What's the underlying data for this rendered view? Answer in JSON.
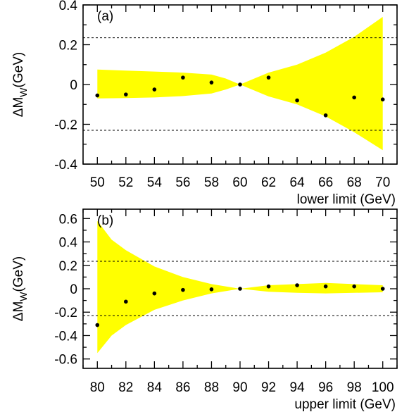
{
  "chart_data": [
    {
      "type": "scatter",
      "panel_label": "(a)",
      "ylabel_main": "ΔM",
      "ylabel_sub": "W",
      "ylabel_unit": "(GeV)",
      "xlabel": "lower limit (GeV)",
      "xlim": [
        49,
        71
      ],
      "ylim": [
        -0.4,
        0.4
      ],
      "xticks": [
        "50",
        "52",
        "54",
        "56",
        "58",
        "60",
        "62",
        "64",
        "66",
        "68",
        "70"
      ],
      "yticks": [
        "-0.4",
        "-0.2",
        "0",
        "0.2",
        "0.4"
      ],
      "reference_lines": [
        0.235,
        -0.23
      ],
      "band_color": "#ffff00",
      "marker_color": "#000000",
      "band": {
        "x": [
          50,
          52,
          54,
          56,
          58,
          59,
          60,
          61,
          62,
          64,
          66,
          68,
          70
        ],
        "upper": [
          0.075,
          0.07,
          0.065,
          0.06,
          0.05,
          0.03,
          0.0,
          0.03,
          0.06,
          0.1,
          0.16,
          0.24,
          0.34
        ],
        "lower": [
          -0.07,
          -0.068,
          -0.065,
          -0.058,
          -0.045,
          -0.025,
          0.0,
          -0.03,
          -0.06,
          -0.1,
          -0.16,
          -0.24,
          -0.33
        ]
      },
      "series": [
        {
          "x": [
            50,
            52,
            54,
            56,
            58,
            60,
            62,
            64,
            66,
            68,
            70
          ],
          "y": [
            -0.055,
            -0.05,
            -0.025,
            0.035,
            0.01,
            0.0,
            0.035,
            -0.08,
            -0.155,
            -0.065,
            -0.075
          ]
        }
      ]
    },
    {
      "type": "scatter",
      "panel_label": "(b)",
      "ylabel_main": "ΔM",
      "ylabel_sub": "W",
      "ylabel_unit": "(GeV)",
      "xlabel": "upper limit (GeV)",
      "xlim": [
        79,
        101
      ],
      "ylim": [
        -0.68,
        0.68
      ],
      "xticks": [
        "80",
        "82",
        "84",
        "86",
        "88",
        "90",
        "92",
        "94",
        "96",
        "98",
        "100"
      ],
      "yticks": [
        "-0.6",
        "-0.4",
        "-0.2",
        "0",
        "0.2",
        "0.4",
        "0.6"
      ],
      "reference_lines": [
        0.235,
        -0.23
      ],
      "band_color": "#ffff00",
      "marker_color": "#000000",
      "band": {
        "x": [
          80,
          81,
          82,
          84,
          86,
          88,
          90,
          92,
          94,
          96,
          98,
          100
        ],
        "upper": [
          0.58,
          0.42,
          0.33,
          0.19,
          0.1,
          0.04,
          0.0,
          0.03,
          0.04,
          0.05,
          0.04,
          0.03
        ],
        "lower": [
          -0.55,
          -0.4,
          -0.31,
          -0.18,
          -0.1,
          -0.04,
          0.0,
          -0.025,
          -0.035,
          -0.04,
          -0.035,
          -0.03
        ]
      },
      "series": [
        {
          "x": [
            80,
            82,
            84,
            86,
            88,
            90,
            92,
            94,
            96,
            98,
            100
          ],
          "y": [
            -0.31,
            -0.11,
            -0.04,
            -0.01,
            -0.005,
            0.0,
            0.02,
            0.03,
            0.02,
            0.02,
            0.0
          ]
        }
      ]
    }
  ]
}
